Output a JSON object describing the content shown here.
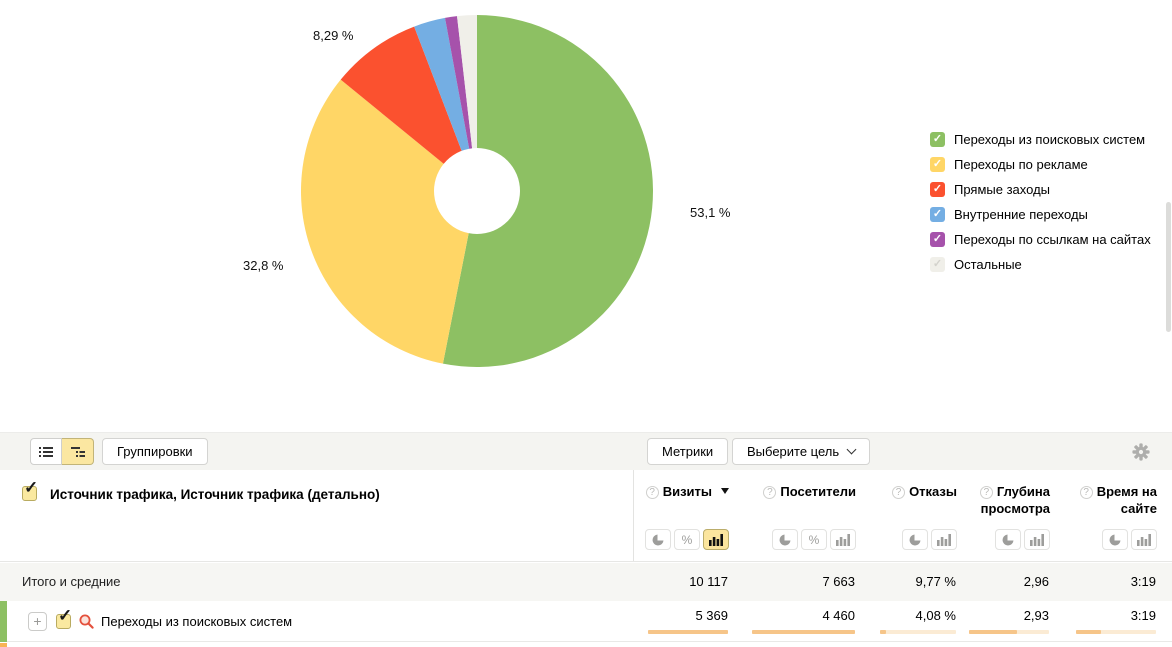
{
  "chart_data": {
    "type": "pie",
    "donut": true,
    "title": "",
    "legend_position": "right",
    "start_angle": "12-oclock-clockwise",
    "slices": [
      {
        "name": "Переходы из поисковых систем",
        "value": 53.1,
        "label": "53,1 %",
        "color": "#8DC063"
      },
      {
        "name": "Переходы по рекламе",
        "value": 32.8,
        "label": "32,8 %",
        "color": "#FFD666"
      },
      {
        "name": "Прямые заходы",
        "value": 8.29,
        "label": "8,29 %",
        "color": "#FB512F"
      },
      {
        "name": "Внутренние переходы",
        "value": 2.9,
        "label": "",
        "color": "#74AEE3"
      },
      {
        "name": "Переходы по ссылкам на сайтах",
        "value": 1.1,
        "label": "",
        "color": "#A652AB"
      },
      {
        "name": "Остальные",
        "value": 1.81,
        "label": "",
        "color": "#F0EFE9"
      }
    ]
  },
  "toolbar": {
    "groupings": "Группировки",
    "metrics": "Метрики",
    "goal": "Выберите цель"
  },
  "table": {
    "dimension_header": "Источник трафика, Источник трафика (детально)",
    "columns": [
      {
        "label": "Визиты",
        "sorted": "desc",
        "chart_toggles": [
          "pie",
          "percent",
          "bars"
        ],
        "active_toggle": "bars"
      },
      {
        "label": "Посетители",
        "sorted": null,
        "chart_toggles": [
          "pie",
          "percent",
          "bars"
        ],
        "active_toggle": null
      },
      {
        "label": "Отказы",
        "sorted": null,
        "chart_toggles": [
          "pie",
          "bars"
        ],
        "active_toggle": null
      },
      {
        "label": "Глубина просмотра",
        "sorted": null,
        "chart_toggles": [
          "pie",
          "bars"
        ],
        "active_toggle": null
      },
      {
        "label": "Время на сайте",
        "sorted": null,
        "chart_toggles": [
          "pie",
          "bars"
        ],
        "active_toggle": null
      }
    ],
    "totals_row": {
      "label": "Итого и средние",
      "values": [
        "10 117",
        "7 663",
        "9,77 %",
        "2,96",
        "3:19"
      ]
    },
    "rows": [
      {
        "label": "Переходы из поисковых систем",
        "color": "#8DC063",
        "checked": true,
        "expandable": true,
        "values": [
          "5 369",
          "4 460",
          "4,08 %",
          "2,93",
          "3:19"
        ],
        "bar_fill_percents": [
          100,
          100,
          8,
          60,
          31
        ]
      }
    ],
    "next_row_stripe_color": "#F8B455"
  },
  "colors": {
    "bar_fill": "#F6C589",
    "bar_track": "#FBEBD4",
    "legend_muted_check": "#D3D2CC"
  }
}
